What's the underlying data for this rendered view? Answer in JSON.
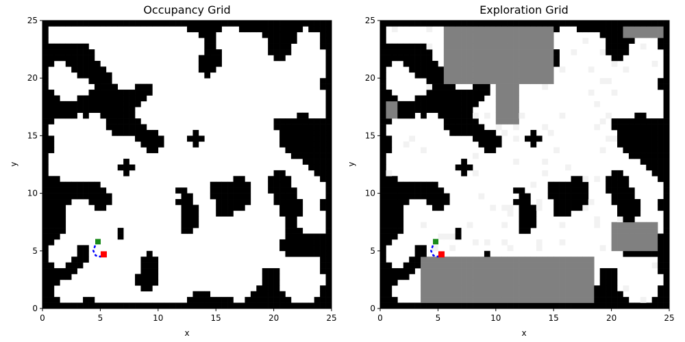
{
  "figure": {
    "background": "#ffffff"
  },
  "chart_data": [
    {
      "type": "heatmap",
      "title": "Occupancy Grid",
      "xlabel": "x",
      "ylabel": "y",
      "xlim": [
        0,
        25
      ],
      "ylim": [
        0,
        25
      ],
      "xticks": [
        "0",
        "5",
        "10",
        "15",
        "20",
        "25"
      ],
      "yticks": [
        "0",
        "5",
        "10",
        "15",
        "20",
        "25"
      ],
      "grid": false,
      "colors": {
        "free": "#ffffff",
        "occupied": "#000000"
      },
      "map_random_seed": 7,
      "start": {
        "x": 4.8,
        "y": 5.8,
        "color": "#1a8a1a"
      },
      "goal": {
        "x": 5.3,
        "y": 4.7,
        "color": "#ff0000"
      },
      "path": {
        "x": [
          4.8,
          4.6,
          4.5,
          4.4,
          4.6,
          5.0,
          5.3
        ],
        "y": [
          5.8,
          5.6,
          5.3,
          5.0,
          4.6,
          4.5,
          4.7
        ],
        "color": "#0000ff",
        "style": "dashed"
      }
    },
    {
      "type": "heatmap",
      "title": "Exploration Grid",
      "xlabel": "x",
      "ylabel": "y",
      "xlim": [
        0,
        25
      ],
      "ylim": [
        0,
        25
      ],
      "xticks": [
        "0",
        "5",
        "10",
        "15",
        "20",
        "25"
      ],
      "yticks": [
        "0",
        "5",
        "10",
        "15",
        "20",
        "25"
      ],
      "grid": false,
      "colors": {
        "free": "#ffffff",
        "occupied": "#000000",
        "unexplored": "#808080",
        "visited": "#f2f2f2"
      },
      "map_random_seed": 7,
      "unexplored_regions": [
        {
          "x": [
            5.5,
            15.2
          ],
          "y": [
            19.5,
            25
          ]
        },
        {
          "x": [
            10,
            12.0
          ],
          "y": [
            16,
            19.5
          ]
        },
        {
          "x": [
            3.5,
            18.4
          ],
          "y": [
            0,
            4.5
          ]
        },
        {
          "x": [
            20,
            24
          ],
          "y": [
            5,
            7.5
          ]
        },
        {
          "x": [
            21,
            25
          ],
          "y": [
            23.5,
            25
          ]
        },
        {
          "x": [
            0,
            1.6
          ],
          "y": [
            16.5,
            18
          ]
        }
      ],
      "start": {
        "x": 4.8,
        "y": 5.8,
        "color": "#1a8a1a"
      },
      "goal": {
        "x": 5.3,
        "y": 4.7,
        "color": "#ff0000"
      },
      "path": {
        "x": [
          4.8,
          4.6,
          4.5,
          4.4,
          4.6,
          5.0,
          5.3
        ],
        "y": [
          5.8,
          5.6,
          5.3,
          5.0,
          4.6,
          4.5,
          4.7
        ],
        "color": "#0000ff",
        "style": "dashed"
      }
    }
  ]
}
